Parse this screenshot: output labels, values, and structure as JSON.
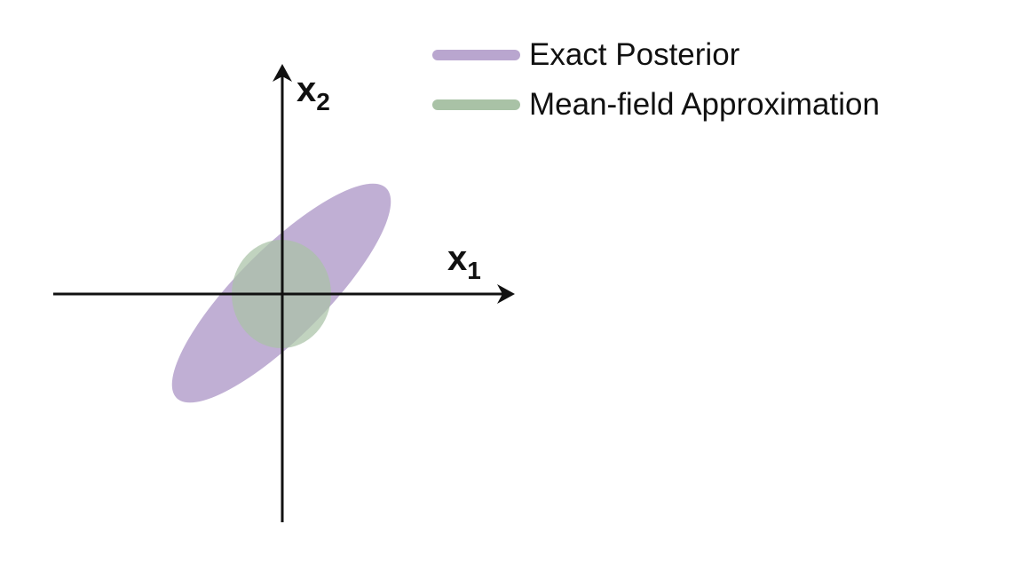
{
  "colors": {
    "exact_posterior": "#b9a6cf",
    "mean_field": "#a9c2a6",
    "axis": "#111111"
  },
  "legend": [
    {
      "label": "Exact Posterior",
      "color_key": "exact_posterior"
    },
    {
      "label": "Mean-field Approximation",
      "color_key": "mean_field"
    }
  ],
  "axes": {
    "x_label": {
      "base": "x",
      "subscript": "1"
    },
    "y_label": {
      "base": "x",
      "subscript": "2"
    }
  }
}
